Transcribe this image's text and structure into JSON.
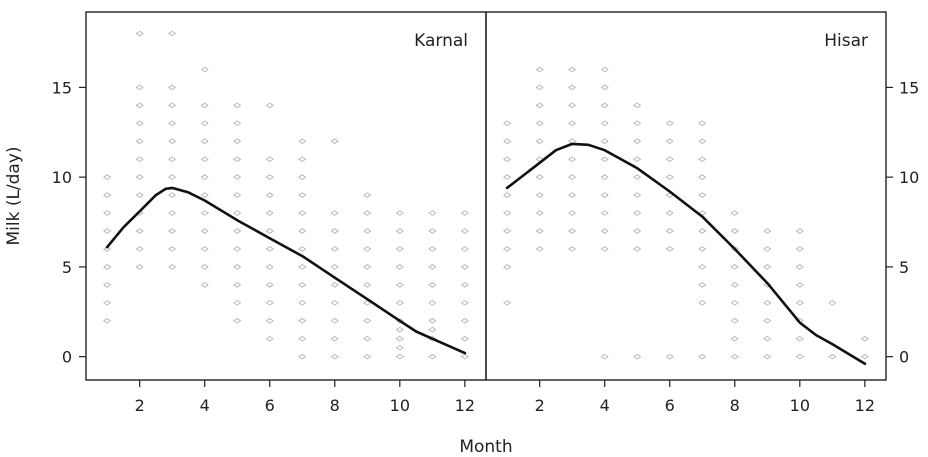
{
  "chart_data": {
    "type": "scatter",
    "xlabel": "Month",
    "ylabel": "Milk (L/day)",
    "xlim": [
      0.35,
      12.65
    ],
    "ylim": [
      -1.3,
      19.2
    ],
    "x_ticks": [
      2,
      4,
      6,
      8,
      10,
      12
    ],
    "y_ticks": [
      0,
      5,
      10,
      15
    ],
    "panels": [
      {
        "name": "Karnal",
        "points": [
          {
            "x": 1,
            "y": [
              2,
              3,
              4,
              5,
              6,
              7,
              8,
              9,
              10
            ]
          },
          {
            "x": 2,
            "y": [
              5,
              6,
              7,
              8,
              9,
              10,
              11,
              12,
              13,
              14,
              15,
              18
            ]
          },
          {
            "x": 3,
            "y": [
              5,
              6,
              7,
              8,
              9,
              10,
              11,
              12,
              13,
              14,
              15,
              18
            ]
          },
          {
            "x": 4,
            "y": [
              4,
              5,
              6,
              7,
              8,
              9,
              10,
              11,
              12,
              13,
              14,
              16
            ]
          },
          {
            "x": 5,
            "y": [
              2,
              3,
              4,
              5,
              6,
              7,
              8,
              9,
              10,
              11,
              12,
              13,
              14
            ]
          },
          {
            "x": 6,
            "y": [
              1,
              2,
              3,
              4,
              5,
              6,
              7,
              8,
              9,
              10,
              11,
              14
            ]
          },
          {
            "x": 7,
            "y": [
              0,
              1,
              2,
              3,
              4,
              5,
              6,
              7,
              8,
              9,
              10,
              11,
              12
            ]
          },
          {
            "x": 8,
            "y": [
              0,
              1,
              2,
              3,
              4,
              5,
              6,
              7,
              8,
              12
            ]
          },
          {
            "x": 9,
            "y": [
              0,
              1,
              2,
              3,
              4,
              5,
              6,
              7,
              8,
              9
            ]
          },
          {
            "x": 10,
            "y": [
              0,
              0.5,
              1,
              1.5,
              2,
              3,
              4,
              5,
              6,
              7,
              8
            ]
          },
          {
            "x": 11,
            "y": [
              0,
              1,
              1.5,
              2,
              3,
              4,
              5,
              6,
              7,
              8
            ]
          },
          {
            "x": 12,
            "y": [
              0,
              1,
              2,
              3,
              4,
              5,
              6,
              7,
              8
            ]
          }
        ],
        "trend": [
          [
            1,
            6.1
          ],
          [
            1.5,
            7.2
          ],
          [
            2,
            8.1
          ],
          [
            2.5,
            9.0
          ],
          [
            2.8,
            9.35
          ],
          [
            3,
            9.4
          ],
          [
            3.5,
            9.15
          ],
          [
            4,
            8.7
          ],
          [
            5,
            7.6
          ],
          [
            6,
            6.6
          ],
          [
            7,
            5.6
          ],
          [
            8,
            4.4
          ],
          [
            9,
            3.2
          ],
          [
            10,
            2.0
          ],
          [
            10.5,
            1.4
          ],
          [
            11,
            1.0
          ],
          [
            12,
            0.2
          ]
        ]
      },
      {
        "name": "Hisar",
        "points": [
          {
            "x": 1,
            "y": [
              3,
              5,
              6,
              7,
              8,
              9,
              10,
              11,
              12,
              13
            ]
          },
          {
            "x": 2,
            "y": [
              6,
              7,
              8,
              9,
              10,
              11,
              12,
              13,
              14,
              15,
              16
            ]
          },
          {
            "x": 3,
            "y": [
              6,
              7,
              8,
              9,
              10,
              11,
              12,
              13,
              14,
              15,
              16
            ]
          },
          {
            "x": 4,
            "y": [
              0,
              6,
              7,
              8,
              9,
              10,
              11,
              12,
              13,
              14,
              15,
              16
            ]
          },
          {
            "x": 5,
            "y": [
              0,
              6,
              7,
              8,
              9,
              10,
              11,
              12,
              13,
              14
            ]
          },
          {
            "x": 6,
            "y": [
              0,
              6,
              7,
              8,
              9,
              10,
              11,
              12,
              13
            ]
          },
          {
            "x": 7,
            "y": [
              0,
              3,
              4,
              5,
              6,
              7,
              8,
              9,
              10,
              11,
              12,
              13
            ]
          },
          {
            "x": 8,
            "y": [
              0,
              1,
              2,
              3,
              4,
              5,
              6,
              7,
              8
            ]
          },
          {
            "x": 9,
            "y": [
              0,
              1,
              2,
              3,
              4,
              5,
              6,
              7
            ]
          },
          {
            "x": 10,
            "y": [
              0,
              1,
              2,
              3,
              4,
              5,
              6,
              7
            ]
          },
          {
            "x": 11,
            "y": [
              0,
              3
            ]
          },
          {
            "x": 12,
            "y": [
              0,
              1
            ]
          }
        ],
        "trend": [
          [
            1,
            9.4
          ],
          [
            1.5,
            10.1
          ],
          [
            2,
            10.8
          ],
          [
            2.5,
            11.5
          ],
          [
            3,
            11.85
          ],
          [
            3.5,
            11.8
          ],
          [
            4,
            11.5
          ],
          [
            5,
            10.5
          ],
          [
            6,
            9.2
          ],
          [
            7,
            7.8
          ],
          [
            8,
            6.0
          ],
          [
            9,
            4.1
          ],
          [
            10,
            1.9
          ],
          [
            10.5,
            1.2
          ],
          [
            11,
            0.7
          ],
          [
            12,
            -0.4
          ]
        ]
      }
    ]
  }
}
